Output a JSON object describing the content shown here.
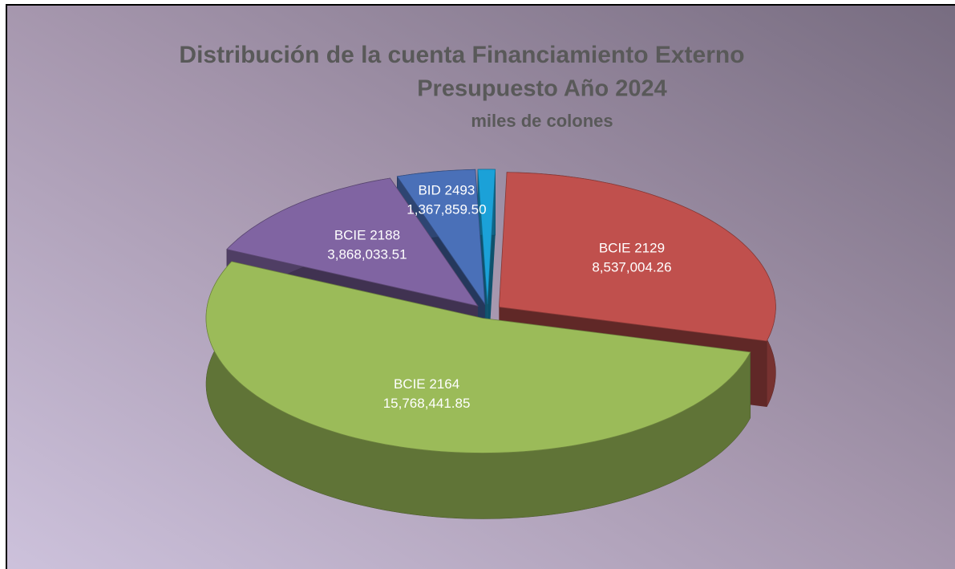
{
  "chart_data": {
    "type": "pie3d",
    "title": "Distribución de la cuenta Financiamiento Externo",
    "subtitle": "Presupuesto Año 2024",
    "units_label": "miles de colones",
    "categories": [
      null,
      "BCIE 2129",
      "BCIE 2164",
      "BCIE 2188",
      "BID 2493"
    ],
    "values": [
      300000,
      8537004.26,
      15768441.85,
      3868033.51,
      1367859.5
    ],
    "value_labels": [
      null,
      "8,537,004.26",
      "15,768,441.85",
      "3,868,033.51",
      "1,367,859.50"
    ],
    "colors": [
      "#1ba1d8",
      "#c0504d",
      "#9bbb59",
      "#8064a2",
      "#4a70b8"
    ]
  }
}
